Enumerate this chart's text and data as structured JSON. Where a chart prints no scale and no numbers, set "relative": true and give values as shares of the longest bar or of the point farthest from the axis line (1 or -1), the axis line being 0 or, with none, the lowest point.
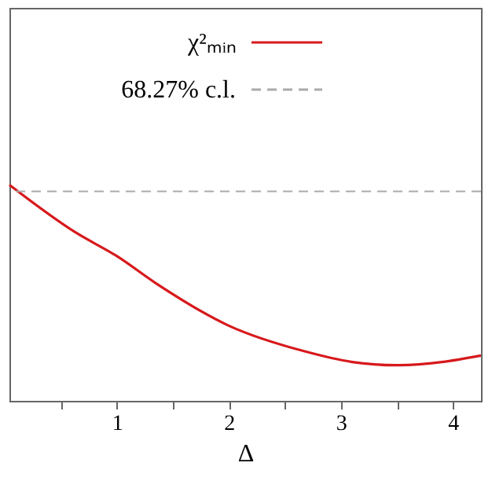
{
  "chart_data": {
    "type": "line",
    "xlabel": "Δ",
    "relative": true,
    "xlim": [
      0.04,
      4.25
    ],
    "xticks": [
      {
        "value": 0.5,
        "label": null
      },
      1,
      {
        "value": 1.5,
        "label": null
      },
      2,
      {
        "value": 2.5,
        "label": null
      },
      3,
      {
        "value": 3.5,
        "label": null
      },
      4
    ],
    "series": [
      {
        "name": "χ²ₘᵢₙ",
        "color": "#d7191c",
        "x": [
          0.04,
          0.63,
          1.0,
          1.36,
          1.99,
          2.67,
          3.1,
          3.5,
          3.9,
          4.25
        ],
        "values": [
          1,
          0.78,
          0.67,
          0.54,
          0.35,
          0.23,
          0.18,
          0.165,
          0.18,
          0.21
        ]
      }
    ],
    "ref_lines": [
      {
        "axis": "y",
        "value": 0.97,
        "label": "68.27% c.l.",
        "color": "#aaaaaa",
        "line_style": "dashed"
      }
    ],
    "legend": "top",
    "grid": false,
    "line_style": "solid",
    "marker": "none"
  }
}
